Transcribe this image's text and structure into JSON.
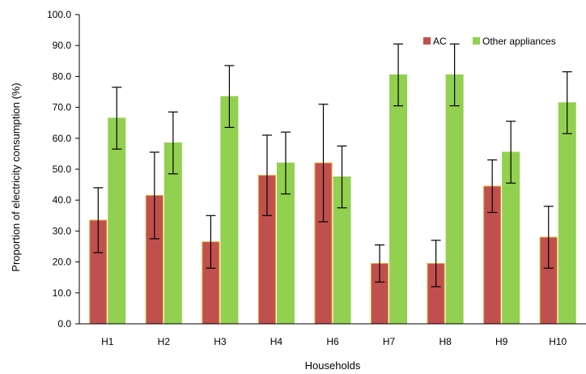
{
  "chart_data": {
    "type": "bar",
    "title": "",
    "xlabel": "Households",
    "ylabel": "Proportion of electricity consumption (%)",
    "ylim": [
      0,
      100
    ],
    "yticks": [
      "0.0",
      "10.0",
      "20.0",
      "30.0",
      "40.0",
      "50.0",
      "60.0",
      "70.0",
      "80.0",
      "90.0",
      "100.0"
    ],
    "categories": [
      "H1",
      "H2",
      "H3",
      "H4",
      "H6",
      "H7",
      "H8",
      "H9",
      "H10"
    ],
    "legend_position": "top-right",
    "grid": false,
    "series": [
      {
        "name": "AC",
        "color": "#c0504d",
        "edge_color": "#f0a030",
        "values": [
          33.5,
          41.5,
          26.5,
          48.0,
          52.0,
          19.5,
          19.5,
          44.5,
          28.0
        ],
        "error": [
          10.5,
          14.0,
          8.5,
          13.0,
          19.0,
          6.0,
          7.5,
          8.5,
          10.0
        ]
      },
      {
        "name": "Other appliances",
        "color": "#92d050",
        "edge_color": "#92d050",
        "values": [
          66.5,
          58.5,
          73.5,
          52.0,
          47.5,
          80.5,
          80.5,
          55.5,
          71.5
        ],
        "error": [
          10.0,
          10.0,
          10.0,
          10.0,
          10.0,
          10.0,
          10.0,
          10.0,
          10.0
        ]
      }
    ]
  }
}
